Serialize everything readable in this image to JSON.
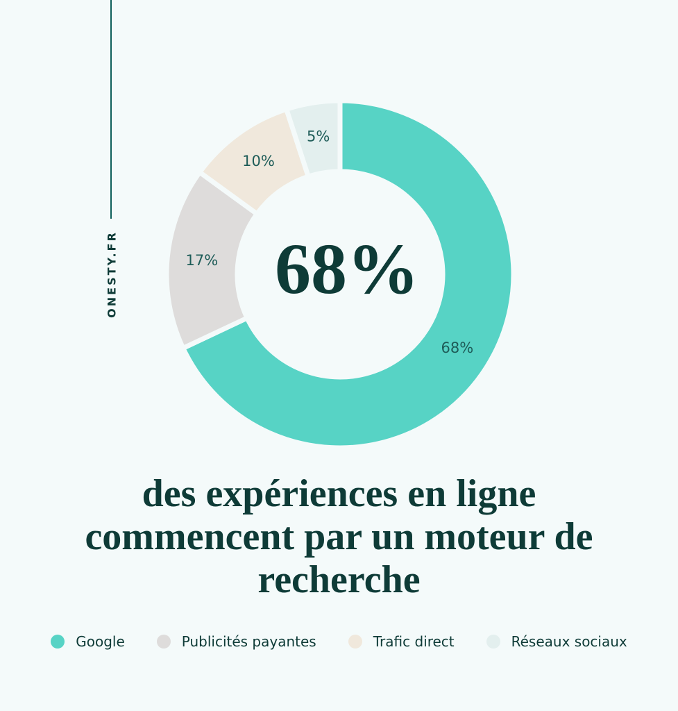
{
  "brand": "ONESTY.FR",
  "chart_data": {
    "type": "pie",
    "donut": true,
    "title": "des expériences en ligne commencent par un moteur de recherche",
    "center_label": "68%",
    "categories": [
      "Google",
      "Publicités payantes",
      "Trafic direct",
      "Réseaux sociaux"
    ],
    "values": [
      68,
      17,
      10,
      5
    ],
    "value_labels": [
      "68%",
      "17%",
      "10%",
      "5%"
    ],
    "colors": [
      "#57d3c5",
      "#dedcdb",
      "#f0e8dc",
      "#e3efee"
    ]
  }
}
